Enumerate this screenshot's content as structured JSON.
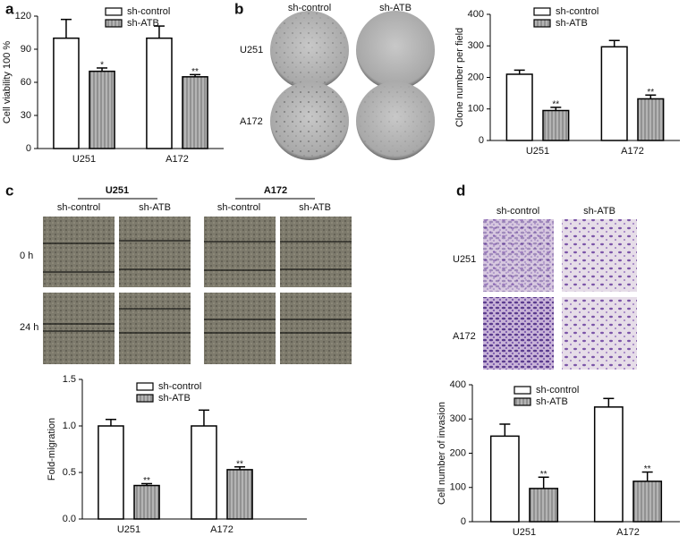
{
  "figure_labels": [
    "a",
    "b",
    "c",
    "d"
  ],
  "panel_b_images": {
    "columns": [
      "sh-control",
      "sh-ATB"
    ],
    "rows": [
      "U251",
      "A172"
    ]
  },
  "panel_c_images": {
    "groups": [
      {
        "name": "U251",
        "columns": [
          "sh-control",
          "sh-ATB"
        ]
      },
      {
        "name": "A172",
        "columns": [
          "sh-control",
          "sh-ATB"
        ]
      }
    ],
    "rows": [
      "0 h",
      "24 h"
    ]
  },
  "panel_d_images": {
    "columns": [
      "sh-control",
      "sh-ATB"
    ],
    "rows": [
      "U251",
      "A172"
    ]
  },
  "chart_data": [
    {
      "type": "bar",
      "y_label": "Cell viability 100 %",
      "categories": [
        "U251",
        "A172"
      ],
      "ylim": [
        0,
        120
      ],
      "yticks": [
        0,
        30,
        60,
        90,
        120
      ],
      "legend": "upper center",
      "series": [
        {
          "name": "sh-control",
          "color": "#ffffff",
          "values": [
            100,
            100
          ],
          "errors": [
            17,
            11
          ]
        },
        {
          "name": "sh-ATB",
          "color": "#a8a8a8",
          "hatch": true,
          "values": [
            70,
            65
          ],
          "errors": [
            3,
            2
          ],
          "significance": [
            "*",
            "**"
          ]
        }
      ]
    },
    {
      "type": "bar",
      "y_label": "Clone number per field",
      "categories": [
        "U251",
        "A172"
      ],
      "ylim": [
        0,
        400
      ],
      "yticks": [
        0,
        100,
        200,
        300,
        400
      ],
      "legend": "upper center",
      "series": [
        {
          "name": "sh-control",
          "color": "#ffffff",
          "values": [
            210,
            297
          ],
          "errors": [
            13,
            20
          ]
        },
        {
          "name": "sh-ATB",
          "color": "#a8a8a8",
          "hatch": true,
          "values": [
            95,
            132
          ],
          "errors": [
            10,
            12
          ],
          "significance": [
            "**",
            "**"
          ]
        }
      ]
    },
    {
      "type": "bar",
      "y_label": "Fold-migration",
      "categories": [
        "U251",
        "A172"
      ],
      "ylim": [
        0,
        1.5
      ],
      "yticks": [
        {
          "value": 0,
          "label": "0.0"
        },
        {
          "value": 0.5,
          "label": "0.5"
        },
        {
          "value": 1,
          "label": "1.0"
        },
        {
          "value": 1.5,
          "label": "1.5"
        }
      ],
      "legend": "upper center",
      "series": [
        {
          "name": "sh-control",
          "color": "#ffffff",
          "values": [
            1,
            1
          ],
          "errors": [
            0.07,
            0.17
          ]
        },
        {
          "name": "sh-ATB",
          "color": "#a8a8a8",
          "hatch": true,
          "values": [
            0.36,
            0.53
          ],
          "errors": [
            0.02,
            0.03
          ],
          "significance": [
            "**",
            "**"
          ]
        }
      ]
    },
    {
      "type": "bar",
      "y_label": "Cell number of invasion",
      "categories": [
        "U251",
        "A172"
      ],
      "ylim": [
        0,
        400
      ],
      "yticks": [
        0,
        100,
        200,
        300,
        400
      ],
      "legend": "upper center",
      "series": [
        {
          "name": "sh-control",
          "color": "#ffffff",
          "values": [
            250,
            335
          ],
          "errors": [
            35,
            25
          ]
        },
        {
          "name": "sh-ATB",
          "color": "#a8a8a8",
          "hatch": true,
          "values": [
            97,
            118
          ],
          "errors": [
            33,
            27
          ],
          "significance": [
            "**",
            "**"
          ]
        }
      ]
    }
  ]
}
